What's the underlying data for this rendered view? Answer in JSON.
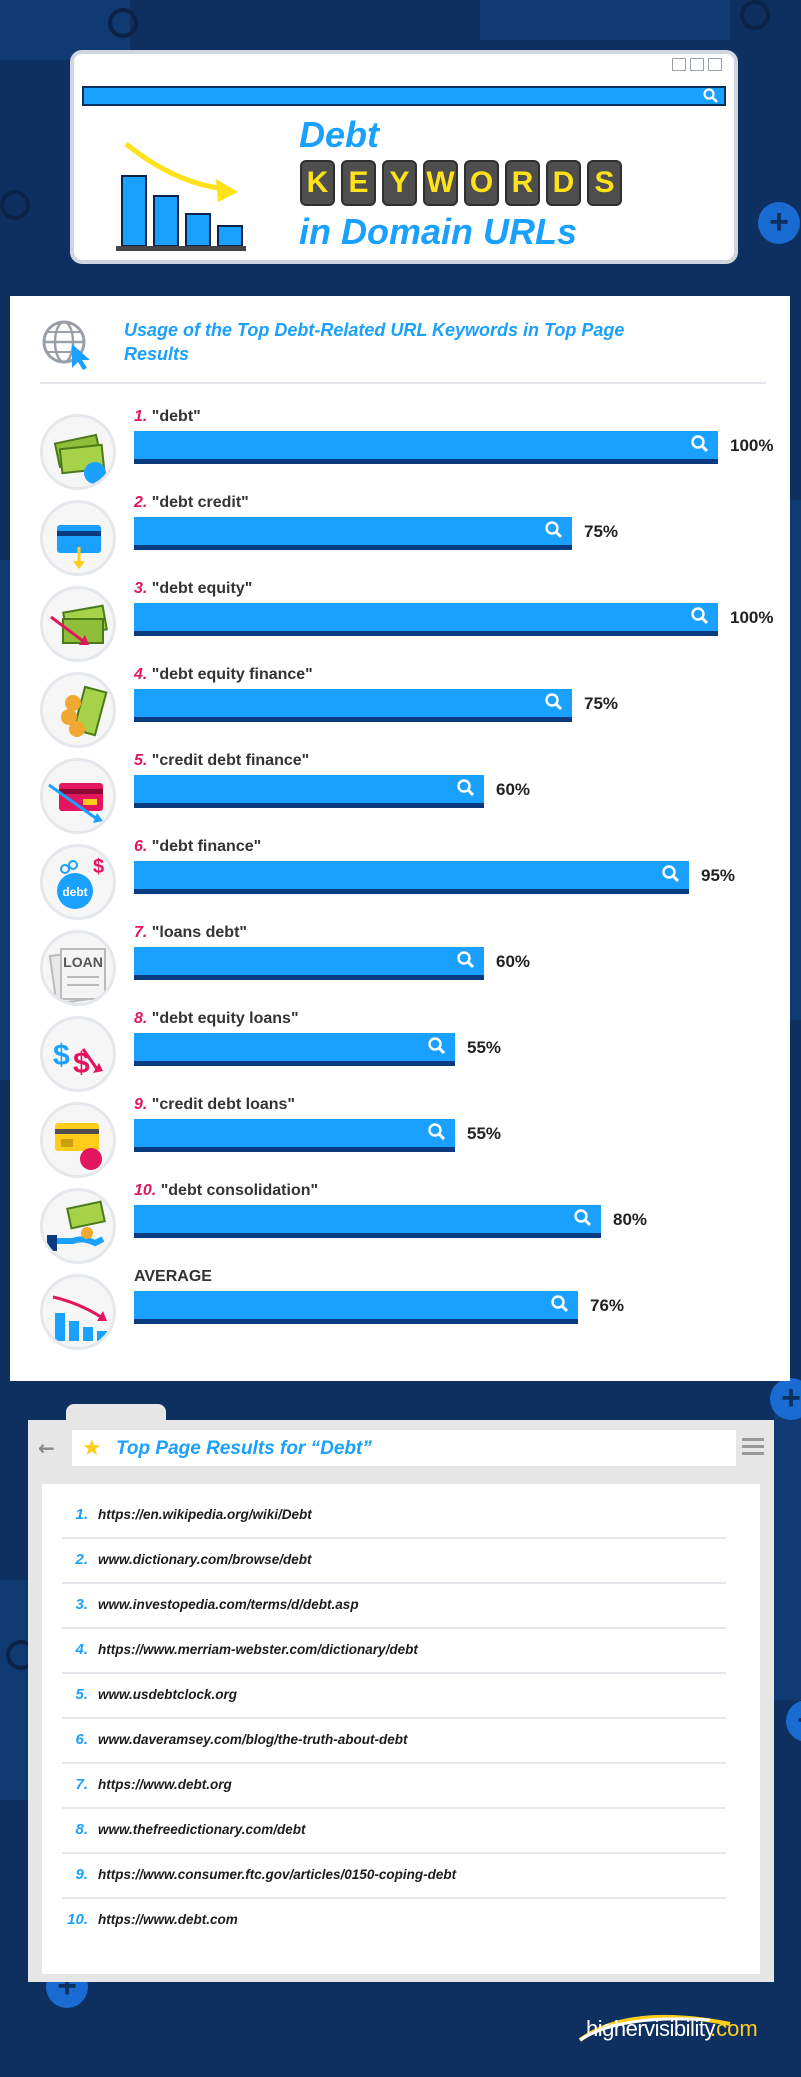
{
  "header": {
    "title_line1": "Debt",
    "title_keyword_letters": [
      "K",
      "E",
      "Y",
      "W",
      "O",
      "R",
      "D",
      "S"
    ],
    "title_line3": "in Domain URLs"
  },
  "panel": {
    "subtitle": "Usage of the Top Debt-Related URL Keywords in Top Page Results"
  },
  "chart_data": {
    "type": "bar",
    "orientation": "horizontal",
    "title": "Usage of the Top Debt-Related URL Keywords in Top Page Results",
    "unit": "%",
    "xlim": [
      0,
      100
    ],
    "rows": [
      {
        "rank": "1.",
        "label": "\"debt\"",
        "value": 100,
        "display": "100%",
        "icon": "money-stack-icon"
      },
      {
        "rank": "2.",
        "label": "\"debt credit\"",
        "value": 75,
        "display": "75%",
        "icon": "credit-card-down-icon"
      },
      {
        "rank": "3.",
        "label": "\"debt equity\"",
        "value": 100,
        "display": "100%",
        "icon": "money-down-arrow-icon"
      },
      {
        "rank": "4.",
        "label": "\"debt equity finance\"",
        "value": 75,
        "display": "75%",
        "icon": "coins-cash-icon"
      },
      {
        "rank": "5.",
        "label": "\"credit debt finance\"",
        "value": 60,
        "display": "60%",
        "icon": "credit-card-decline-icon"
      },
      {
        "rank": "6.",
        "label": "\"debt finance\"",
        "value": 95,
        "display": "95%",
        "icon": "debt-ball-chain-icon"
      },
      {
        "rank": "7.",
        "label": "\"loans debt\"",
        "value": 60,
        "display": "60%",
        "icon": "loan-document-icon"
      },
      {
        "rank": "8.",
        "label": "\"debt equity loans\"",
        "value": 55,
        "display": "55%",
        "icon": "dollar-down-icon"
      },
      {
        "rank": "9.",
        "label": "\"credit debt loans\"",
        "value": 55,
        "display": "55%",
        "icon": "credit-card-ball-icon"
      },
      {
        "rank": "10.",
        "label": "\"debt consolidation\"",
        "value": 80,
        "display": "80%",
        "icon": "hand-money-icon"
      },
      {
        "rank": "",
        "label": "AVERAGE",
        "value": 76,
        "display": "76%",
        "icon": "declining-bars-icon"
      }
    ],
    "colors": {
      "bar": "#1aa0ff",
      "bar_shadow": "#0a3a80",
      "rank": "#e3155e"
    }
  },
  "results": {
    "title": "Top Page Results for “Debt”",
    "items": [
      {
        "num": "1.",
        "url": "https://en.wikipedia.org/wiki/Debt"
      },
      {
        "num": "2.",
        "url": "www.dictionary.com/browse/debt"
      },
      {
        "num": "3.",
        "url": "www.investopedia.com/terms/d/debt.asp"
      },
      {
        "num": "4.",
        "url": "https://www.merriam-webster.com/dictionary/debt"
      },
      {
        "num": "5.",
        "url": "www.usdebtclock.org"
      },
      {
        "num": "6.",
        "url": "www.daveramsey.com/blog/the-truth-about-debt"
      },
      {
        "num": "7.",
        "url": "https://www.debt.org"
      },
      {
        "num": "8.",
        "url": "www.thefreedictionary.com/debt"
      },
      {
        "num": "9.",
        "url": "https://www.consumer.ftc.gov/articles/0150-coping-debt"
      },
      {
        "num": "10.",
        "url": "https://www.debt.com"
      }
    ]
  },
  "brand": {
    "name": "highervisibility",
    "suffix": ".com"
  }
}
